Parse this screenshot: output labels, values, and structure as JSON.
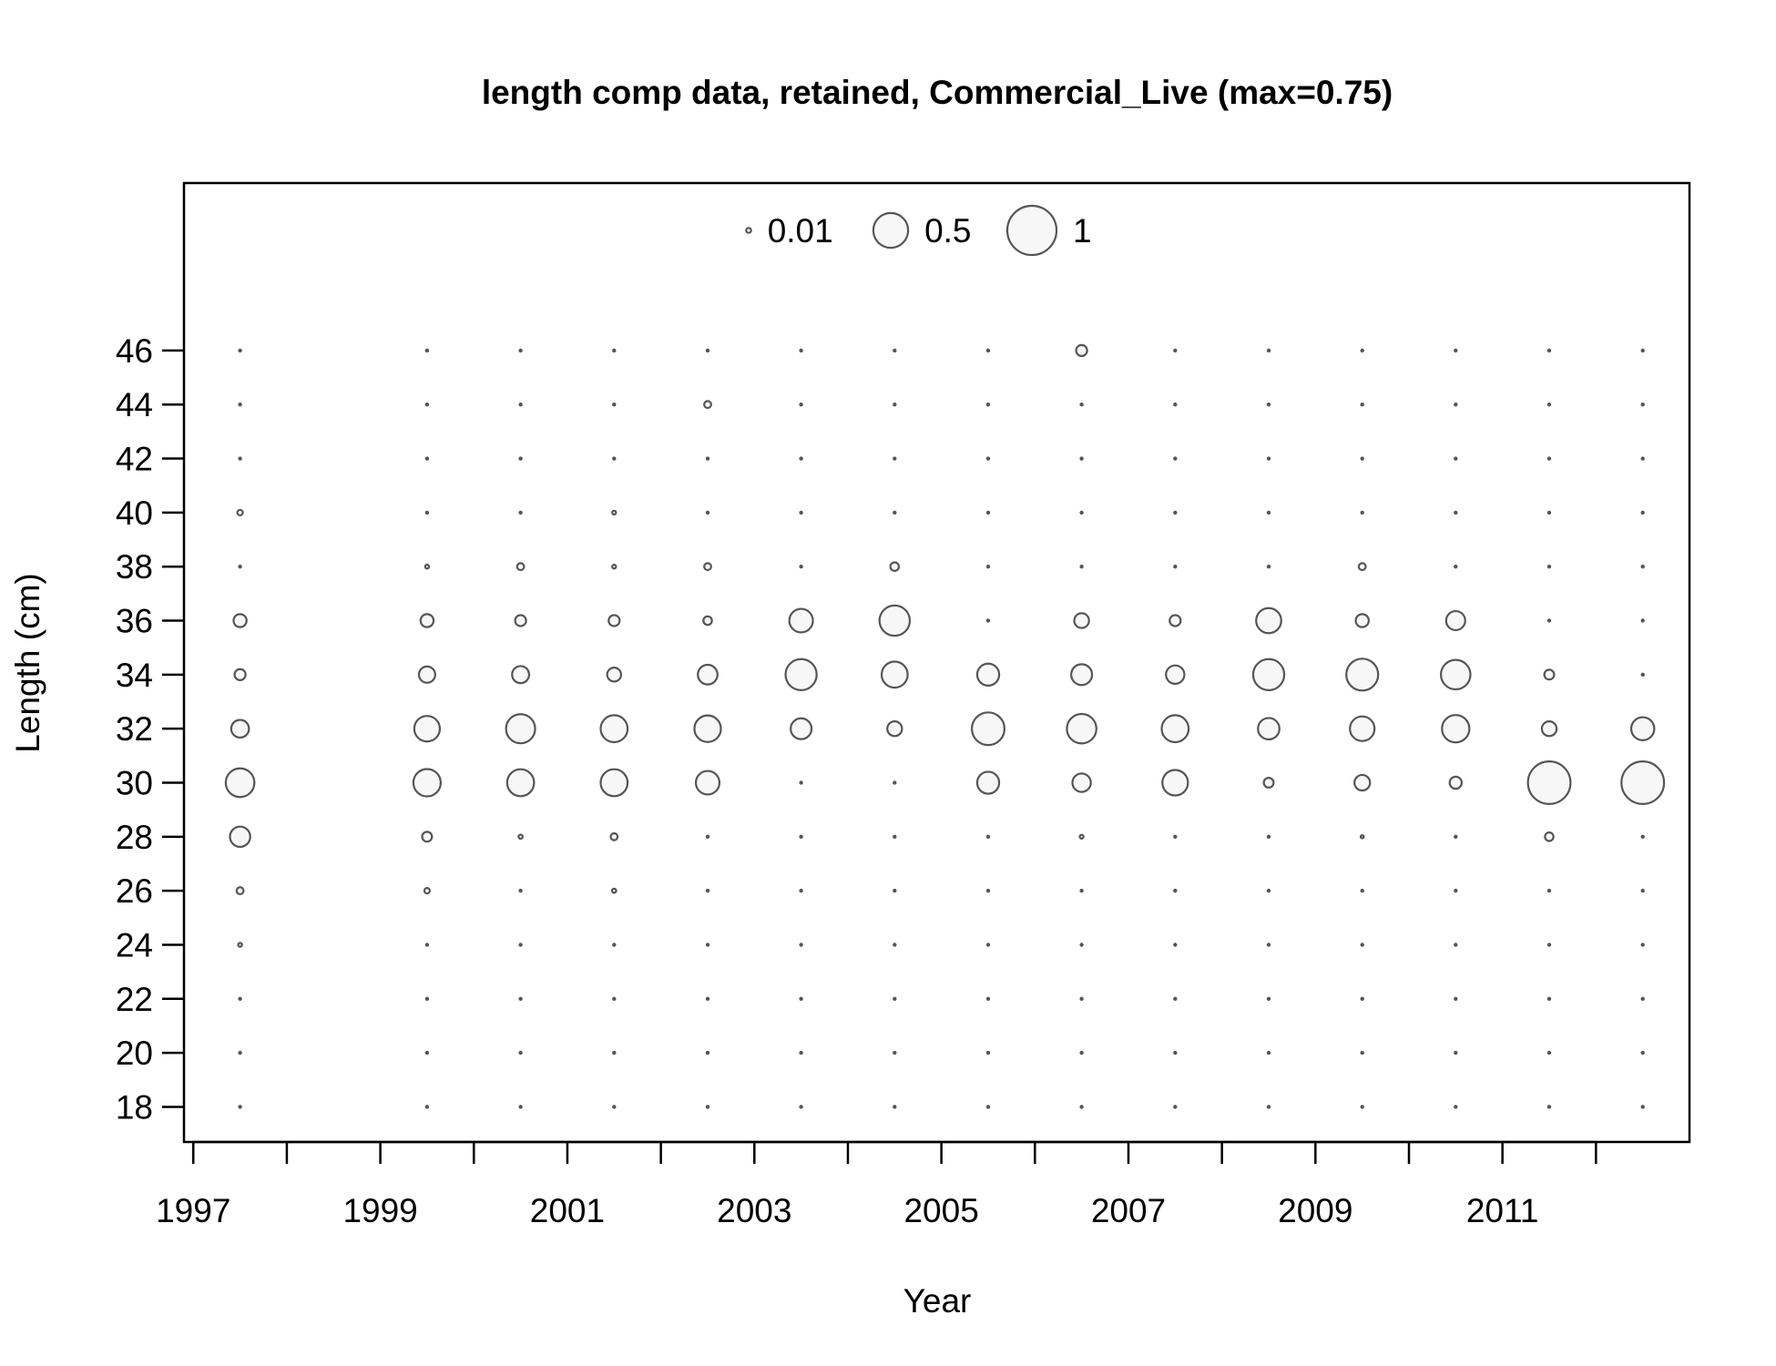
{
  "chart_data": {
    "type": "bubble",
    "title": "length comp data, retained, Commercial_Live (max=0.75)",
    "xlabel": "Year",
    "ylabel": "Length (cm)",
    "xlim": [
      1996.9,
      2013.0
    ],
    "ylim": [
      16.7,
      52.2
    ],
    "x_ticks": [
      "1997",
      "1999",
      "2001",
      "2003",
      "2005",
      "2007",
      "2009",
      "2011"
    ],
    "x_minor_ticks": [
      1998,
      2000,
      2002,
      2004,
      2006,
      2008,
      2010,
      2012
    ],
    "y_ticks": [
      "18",
      "20",
      "22",
      "24",
      "26",
      "28",
      "30",
      "32",
      "34",
      "36",
      "38",
      "40",
      "42",
      "44",
      "46"
    ],
    "legend": {
      "placement": "top",
      "entries": [
        {
          "label": "0.01",
          "value": 0.01
        },
        {
          "label": "0.5",
          "value": 0.5
        },
        {
          "label": "1",
          "value": 1
        }
      ]
    },
    "lengths": [
      18,
      20,
      22,
      24,
      26,
      28,
      30,
      32,
      34,
      36,
      38,
      40,
      42,
      44,
      46
    ],
    "years": [
      1997.5,
      1999.5,
      2000.5,
      2001.5,
      2002.5,
      2003.5,
      2004.5,
      2005.5,
      2006.5,
      2007.5,
      2008.5,
      2009.5,
      2010.5,
      2011.5,
      2012.5
    ],
    "values": [
      [
        0.0002,
        0.0002,
        0.0002,
        0.006,
        0.02,
        0.17,
        0.34,
        0.13,
        0.05,
        0.07,
        0.0004,
        0.012,
        0.0003,
        0.0002,
        0.0002
      ],
      [
        0.0002,
        0.0002,
        0.0002,
        0.0002,
        0.012,
        0.04,
        0.31,
        0.27,
        0.11,
        0.07,
        0.006,
        0.0004,
        0.0002,
        0.0002,
        0.0002
      ],
      [
        0.0002,
        0.0002,
        0.0002,
        0.0002,
        0.0004,
        0.007,
        0.3,
        0.35,
        0.12,
        0.05,
        0.02,
        0.0003,
        0.0002,
        0.0002,
        0.0002
      ],
      [
        0.0002,
        0.0002,
        0.0002,
        0.0002,
        0.007,
        0.02,
        0.3,
        0.3,
        0.08,
        0.05,
        0.006,
        0.006,
        0.0002,
        0.0002,
        0.0002
      ],
      [
        0.0002,
        0.0002,
        0.0002,
        0.0002,
        0.0002,
        0.0004,
        0.23,
        0.29,
        0.16,
        0.03,
        0.02,
        0.0004,
        0.0002,
        0.02,
        0.0002
      ],
      [
        0.0002,
        0.0002,
        0.0002,
        0.0002,
        0.0002,
        0.0004,
        0.0008,
        0.18,
        0.4,
        0.23,
        0.0004,
        0.0004,
        0.0002,
        0.0002,
        0.0002
      ],
      [
        0.0002,
        0.0002,
        0.0002,
        0.0002,
        0.0002,
        0.0004,
        0.0008,
        0.09,
        0.28,
        0.38,
        0.03,
        0.0004,
        0.0002,
        0.0002,
        0.0002
      ],
      [
        0.0002,
        0.0002,
        0.0002,
        0.0002,
        0.0002,
        0.0004,
        0.2,
        0.44,
        0.2,
        0.0008,
        0.0004,
        0.0003,
        0.0002,
        0.0002,
        0.0002
      ],
      [
        0.0002,
        0.0002,
        0.0002,
        0.0002,
        0.0002,
        0.006,
        0.14,
        0.36,
        0.18,
        0.09,
        0.0004,
        0.0003,
        0.0002,
        0.0002,
        0.05
      ],
      [
        0.0002,
        0.0002,
        0.0002,
        0.0002,
        0.0002,
        0.0004,
        0.27,
        0.3,
        0.14,
        0.05,
        0.0004,
        0.0003,
        0.0002,
        0.0002,
        0.0002
      ],
      [
        0.0002,
        0.0002,
        0.0002,
        0.0002,
        0.0002,
        0.0004,
        0.04,
        0.19,
        0.4,
        0.26,
        0.0004,
        0.0003,
        0.0002,
        0.0002,
        0.0002
      ],
      [
        0.0002,
        0.0002,
        0.0002,
        0.0002,
        0.0002,
        0.004,
        0.1,
        0.25,
        0.42,
        0.07,
        0.02,
        0.0003,
        0.0002,
        0.0002,
        0.0002
      ],
      [
        0.0002,
        0.0002,
        0.0002,
        0.0002,
        0.0002,
        0.0004,
        0.06,
        0.31,
        0.36,
        0.15,
        0.0004,
        0.0003,
        0.0002,
        0.0002,
        0.0002
      ],
      [
        0.0002,
        0.0002,
        0.0002,
        0.0002,
        0.0002,
        0.03,
        0.75,
        0.09,
        0.04,
        0.0008,
        0.0004,
        0.0003,
        0.0002,
        0.0002,
        0.0002
      ],
      [
        0.0002,
        0.0002,
        0.0002,
        0.0002,
        0.0002,
        0.0004,
        0.75,
        0.22,
        0.0008,
        0.0008,
        0.0004,
        0.0003,
        0.0002,
        0.0002,
        0.0002
      ]
    ]
  }
}
